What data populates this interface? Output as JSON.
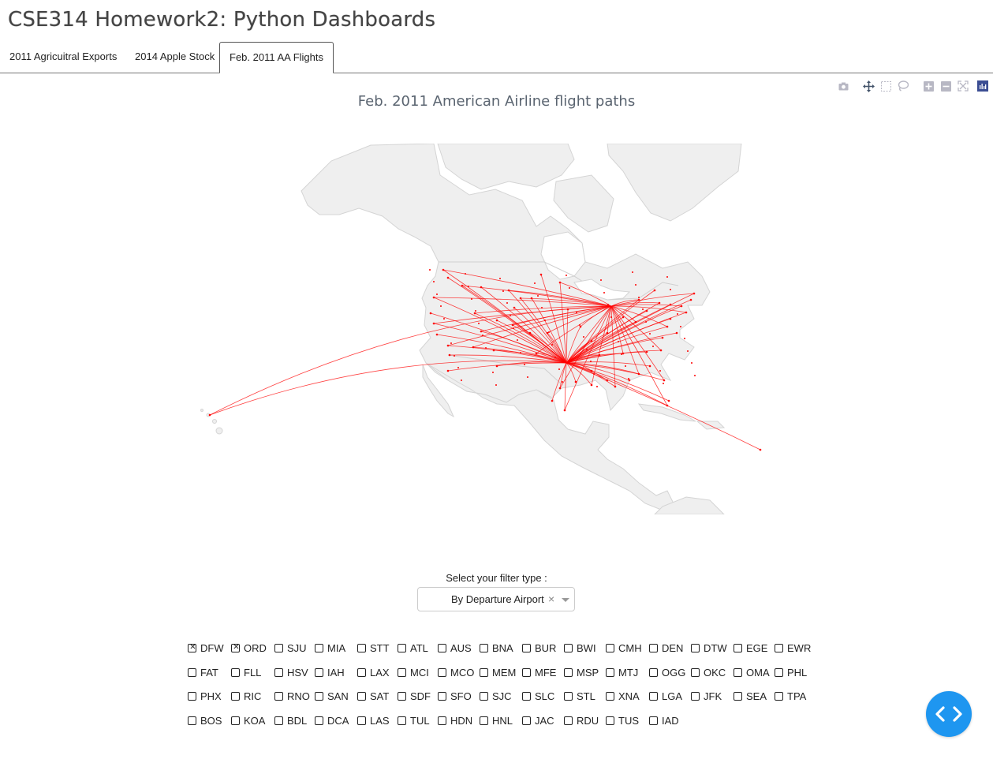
{
  "page": {
    "title": "CSE314 Homework2: Python Dashboards"
  },
  "tabs": [
    {
      "label": "2011 Agricuitral Exports"
    },
    {
      "label": "2014 Apple Stock"
    },
    {
      "label": "Feb. 2011 AA Flights",
      "active": true
    }
  ],
  "modebar": {
    "buttons": [
      "camera-icon",
      "pan-icon",
      "box-select-icon",
      "lasso-icon",
      "zoom-in-icon",
      "zoom-out-icon",
      "reset-icon",
      "plotly-logo-icon"
    ]
  },
  "chart": {
    "title": "Feb. 2011 American Airline flight paths",
    "route_color": "#ff0000",
    "land_color": "#efefef",
    "border_color": "#cccccc"
  },
  "filter": {
    "label": "Select your filter type :",
    "selected": "By Departure Airport",
    "clear_symbol": "×"
  },
  "airports": [
    [
      {
        "code": "DFW",
        "checked": true
      },
      {
        "code": "ORD",
        "checked": true
      },
      {
        "code": "SJU"
      },
      {
        "code": "MIA"
      },
      {
        "code": "STT"
      },
      {
        "code": "ATL"
      },
      {
        "code": "AUS"
      },
      {
        "code": "BNA"
      },
      {
        "code": "BUR"
      },
      {
        "code": "BWI"
      },
      {
        "code": "CMH"
      },
      {
        "code": "DEN"
      },
      {
        "code": "DTW"
      },
      {
        "code": "EGE"
      },
      {
        "code": "EWR"
      }
    ],
    [
      {
        "code": "FAT"
      },
      {
        "code": "FLL"
      },
      {
        "code": "HSV"
      },
      {
        "code": "IAH"
      },
      {
        "code": "LAX"
      },
      {
        "code": "MCI"
      },
      {
        "code": "MCO"
      },
      {
        "code": "MEM"
      },
      {
        "code": "MFE"
      },
      {
        "code": "MSP"
      },
      {
        "code": "MTJ"
      },
      {
        "code": "OGG"
      },
      {
        "code": "OKC"
      },
      {
        "code": "OMA"
      },
      {
        "code": "PHL"
      }
    ],
    [
      {
        "code": "PHX"
      },
      {
        "code": "RIC"
      },
      {
        "code": "RNO"
      },
      {
        "code": "SAN"
      },
      {
        "code": "SAT"
      },
      {
        "code": "SDF"
      },
      {
        "code": "SFO"
      },
      {
        "code": "SJC"
      },
      {
        "code": "SLC"
      },
      {
        "code": "STL"
      },
      {
        "code": "XNA"
      },
      {
        "code": "LGA"
      },
      {
        "code": "JFK"
      },
      {
        "code": "SEA"
      },
      {
        "code": "TPA"
      }
    ],
    [
      {
        "code": "BOS"
      },
      {
        "code": "KOA"
      },
      {
        "code": "BDL"
      },
      {
        "code": "DCA"
      },
      {
        "code": "LAS"
      },
      {
        "code": "TUL"
      },
      {
        "code": "HDN"
      },
      {
        "code": "HNL"
      },
      {
        "code": "JAC"
      },
      {
        "code": "RDU"
      },
      {
        "code": "TUS"
      },
      {
        "code": "IAD"
      }
    ]
  ],
  "code_toggle": {
    "label": "‹›"
  }
}
